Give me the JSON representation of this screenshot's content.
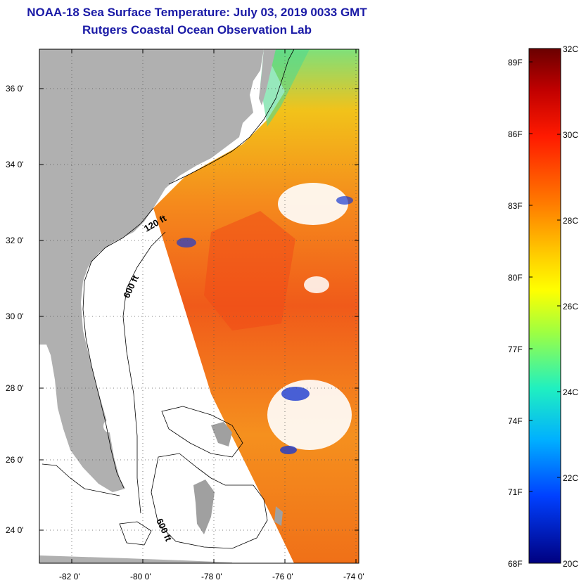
{
  "title": {
    "line1": "NOAA-18 Sea Surface Temperature:  July 03, 2019 0033 GMT",
    "line2": "Rutgers Coastal Ocean Observation Lab"
  },
  "map": {
    "lat_ticks": [
      "36 0'",
      "34 0'",
      "32 0'",
      "30 0'",
      "28 0'",
      "26 0'",
      "24 0'"
    ],
    "lon_ticks": [
      "-82 0'",
      "-80 0'",
      "-78 0'",
      "-76 0'",
      "-74 0'"
    ],
    "contour_labels": [
      "120 ft",
      "600 ft",
      "600 ft"
    ],
    "colors": {
      "land": "#b0b0b0",
      "nodata": "#ffffff",
      "gridline": "#555555"
    }
  },
  "colorbar": {
    "fahrenheit_labels": [
      "89F",
      "86F",
      "83F",
      "80F",
      "77F",
      "74F",
      "71F",
      "68F"
    ],
    "celsius_labels": [
      "32C",
      "30C",
      "28C",
      "26C",
      "24C",
      "22C",
      "20C"
    ],
    "range_c": [
      20,
      32
    ]
  }
}
